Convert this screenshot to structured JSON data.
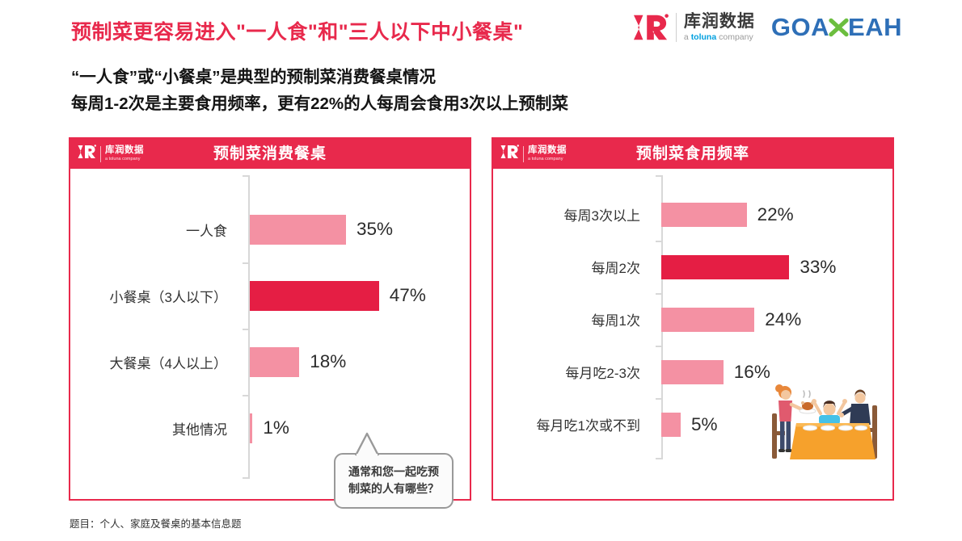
{
  "header": {
    "title": "预制菜更容易进入\"一人食\"和\"三人以下中小餐桌\"",
    "subtitle_line1": "“一人食”或“小餐桌”是典型的预制菜消费餐桌情况",
    "subtitle_line2": "每周1-2次是主要食用频率，更有22%的人每周会食用3次以上预制菜"
  },
  "branding": {
    "kurun_name": "库润数据",
    "kurun_tagline_prefix": "a ",
    "kurun_tagline_brand": "toluna",
    "kurun_tagline_suffix": " company",
    "goayeah_left": "GOA",
    "goayeah_right": "EAH"
  },
  "colors": {
    "accent_red": "#E8294C",
    "bar_pink": "#F491A3",
    "bar_highlight": "#E51E44",
    "goayeah_blue": "#2E6FB7",
    "goayeah_green": "#6CBE3F",
    "toluna_blue": "#00A0DF"
  },
  "chart_data": [
    {
      "type": "bar",
      "orientation": "horizontal",
      "title": "预制菜消费餐桌",
      "categories": [
        "一人食",
        "小餐桌（3人以下）",
        "大餐桌（4人以上）",
        "其他情况"
      ],
      "values": [
        35,
        47,
        18,
        1
      ],
      "value_labels": [
        "35%",
        "47%",
        "18%",
        "1%"
      ],
      "highlight_index": 1,
      "xlim": [
        0,
        50
      ],
      "grid": false,
      "annotation": "通常和您一起吃预制菜的人有哪些？"
    },
    {
      "type": "bar",
      "orientation": "horizontal",
      "title": "预制菜食用频率",
      "categories": [
        "每周3次以上",
        "每周2次",
        "每周1次",
        "每月吃2-3次",
        "每月吃1次或不到"
      ],
      "values": [
        22,
        33,
        24,
        16,
        5
      ],
      "value_labels": [
        "22%",
        "33%",
        "24%",
        "16%",
        "5%"
      ],
      "highlight_index": 1,
      "xlim": [
        0,
        35
      ],
      "grid": false
    }
  ],
  "footnote": "题目：个人、家庭及餐桌的基本信息题"
}
